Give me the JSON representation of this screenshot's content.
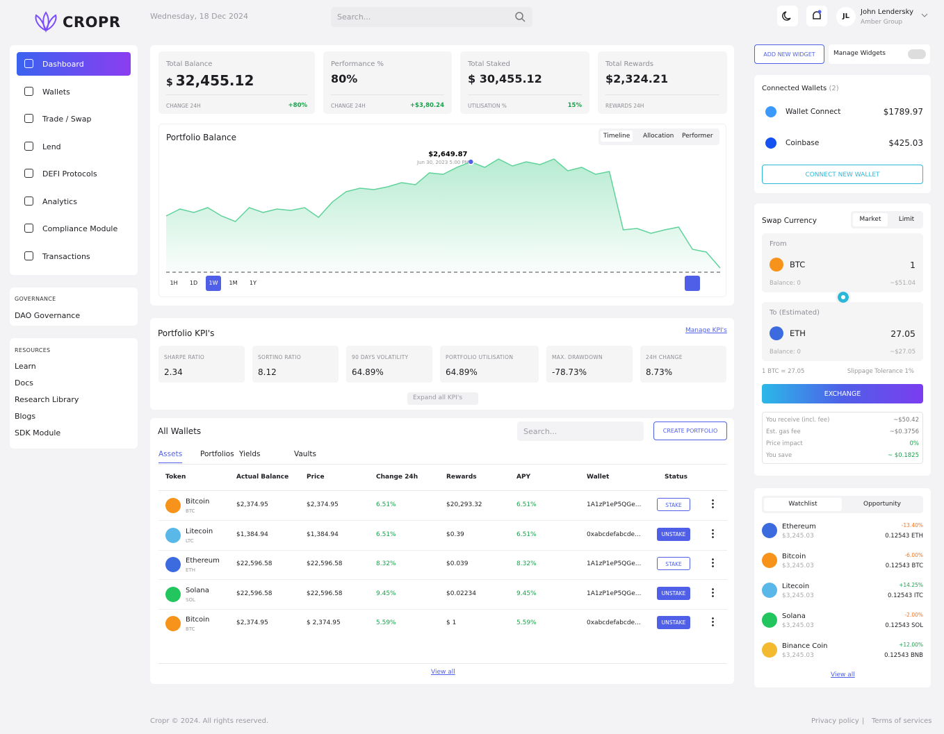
{
  "header": {
    "brand": "CROPR",
    "date": "Wednesday, 18 Dec 2024",
    "search": "Search...",
    "user": {
      "initials": "JL",
      "name": "John Lendersky",
      "org": "Amber Group"
    }
  },
  "sidebar": {
    "nav": [
      "Dashboard",
      "Wallets",
      "Trade / Swap",
      "Lend",
      "DEFI Protocols",
      "Analytics",
      "Compliance Module",
      "Transactions"
    ],
    "governance": {
      "title": "GOVERNANCE",
      "links": [
        "DAO Governance"
      ]
    },
    "resources": {
      "title": "RESOURCES",
      "links": [
        "Learn",
        "Docs",
        "Research Library",
        "Blogs",
        "SDK Module"
      ]
    }
  },
  "stats": [
    {
      "label": "Total Balance",
      "currency": "$",
      "value": "32,455.12",
      "footer_label": "CHANGE 24H",
      "footer_value": "+80%"
    },
    {
      "label": "Performance %",
      "value": "80%",
      "footer_label": "CHANGE 24H",
      "footer_value": "+$3,80.24"
    },
    {
      "label": "Total Staked",
      "value": "$ 30,455.12",
      "footer_label": "UTILISATION %",
      "footer_value": "15%"
    },
    {
      "label": "Total Rewards",
      "value": "$2,324.21",
      "footer_label": "REWARDS 24H"
    }
  ],
  "chart_data": {
    "type": "area",
    "title": "Portfolio Balance",
    "tabs": [
      "Timeline",
      "Allocation",
      "Performer"
    ],
    "ranges": [
      "1H",
      "1D",
      "1W",
      "1M",
      "1Y"
    ],
    "color": "#5fd39a",
    "values": [
      1350,
      1517,
      1434,
      1550,
      1350,
      1217,
      1550,
      1434,
      1517,
      1484,
      1550,
      1317,
      1684,
      1934,
      2017,
      1984,
      2050,
      2150,
      2100,
      2384,
      2350,
      2517,
      2649.87,
      2517,
      2717,
      2550,
      2650,
      2584,
      2717,
      2434,
      2517,
      2350,
      2417,
      1017,
      1050,
      934,
      1017,
      1084,
      550,
      484,
      100
    ],
    "ylim": [
      0,
      3000
    ],
    "annotation": {
      "index": 22,
      "label": "$2,649.87",
      "date": "Jun 30, 2023 5:00 PM"
    }
  },
  "kpis": {
    "title": "Portfolio KPI's",
    "link": "Manage KPI's",
    "expand": "Expand all KPI's",
    "items": [
      {
        "label": "SHARPE RATIO",
        "value": "2.34"
      },
      {
        "label": "SORTINO RATIO",
        "value": "8.12"
      },
      {
        "label": "90 DAYS VOLATILITY",
        "value": "64.89%"
      },
      {
        "label": "PORTFOLIO UTILISATION",
        "value": "64.89%"
      },
      {
        "label": "MAX. DRAWDOWN",
        "value": "-78.73%"
      },
      {
        "label": "24H CHANGE",
        "value": "8.73%"
      }
    ]
  },
  "wallets": {
    "title": "All Wallets",
    "search": "Search...",
    "create": "CREATE PORTFOLIO",
    "tabs": [
      "Assets",
      "Portfolios",
      "Yields",
      "Vaults"
    ],
    "columns": [
      "Token",
      "Actual Balance",
      "Price",
      "Change 24h",
      "Rewards",
      "APY",
      "Wallet",
      "Status"
    ],
    "rows": [
      {
        "name": "Bitcoin",
        "symbol": "BTC",
        "color": "#f7931a",
        "balance": "$2,374.95",
        "price": "$2,374.95",
        "change": "6.51%",
        "rewards": "$20,293.32",
        "apy": "6.51%",
        "wallet": "1A1zP1eP5QGe...",
        "action": "STAKE"
      },
      {
        "name": "Litecoin",
        "symbol": "LTC",
        "color": "#5ab8e8",
        "balance": "$1,384.94",
        "price": "$1,384.94",
        "change": "6.51%",
        "rewards": "$0.39",
        "apy": "6.51%",
        "wallet": "0xabcdefabcde...",
        "action": "UNSTAKE"
      },
      {
        "name": "Ethereum",
        "symbol": "ETH",
        "color": "#3c6be0",
        "balance": "$22,596.58",
        "price": "$22,596.58",
        "change": "8.32%",
        "rewards": "$0.039",
        "apy": "8.32%",
        "wallet": "1A1zP1eP5QGe...",
        "action": "STAKE"
      },
      {
        "name": "Solana",
        "symbol": "SOL",
        "color": "#22c55e",
        "balance": "$22,596.58",
        "price": "$22,596.58",
        "change": "9.45%",
        "rewards": "$0.02234",
        "apy": "9.45%",
        "wallet": "1A1zP1eP5QGe...",
        "action": "UNSTAKE"
      },
      {
        "name": "Bitcoin",
        "symbol": "BTC",
        "color": "#f7931a",
        "balance": "$2,374.95",
        "price": "$ 2,374.95",
        "change": "5.59%",
        "rewards": "$ 1",
        "apy": "5.59%",
        "wallet": "0xabcdefabcde...",
        "action": "UNSTAKE"
      }
    ],
    "view_all": "View all"
  },
  "widgets": {
    "add": "ADD NEW WIDGET",
    "manage": "Manage Widgets"
  },
  "connected": {
    "title": "Connected Wallets",
    "count": "(2)",
    "wallets": [
      {
        "name": "Wallet Connect",
        "balance": "$1789.97",
        "color": "#3b99fc"
      },
      {
        "name": "Coinbase",
        "balance": "$425.03",
        "color": "#1652f0"
      }
    ],
    "connect": "CONNECT NEW WALLET"
  },
  "swap": {
    "title": "Swap Currency",
    "tabs": [
      "Market",
      "Limit"
    ],
    "from": {
      "label": "From",
      "token": "BTC",
      "color": "#f7931a",
      "amount": "1",
      "balance": "Balance: 0",
      "usd": "~$51.04"
    },
    "to": {
      "label": "To (Estimated)",
      "token": "ETH",
      "color": "#3c6be0",
      "amount": "27.05",
      "balance": "Balance: 0",
      "usd": "~$27.05"
    },
    "rate": "1 BTC = 27.05",
    "slippage": "Slippage Tolerance 1%",
    "exchange": "EXCHANGE",
    "details": [
      {
        "label": "You receive (incl. fee)",
        "value": "~$50.42"
      },
      {
        "label": "Est. gas fee",
        "value": "~$0.3756"
      },
      {
        "label": "Price impact",
        "value": "0%"
      },
      {
        "label": "You save",
        "value": "~ $0.1825"
      }
    ]
  },
  "watchlist": {
    "tabs": [
      "Watchlist",
      "Opportunity"
    ],
    "items": [
      {
        "name": "Ethereum",
        "price": "$3,245.03",
        "change": "-13.40%",
        "amount": "0.12543 ETH",
        "color": "#3c6be0"
      },
      {
        "name": "Bitcoin",
        "price": "$3,245.03",
        "change": "-6.00%",
        "amount": "0.12543 BTC",
        "color": "#f7931a"
      },
      {
        "name": "Litecoin",
        "price": "$3,245.03",
        "change": "+14.25%",
        "amount": "0.12543 ITC",
        "color": "#5ab8e8"
      },
      {
        "name": "Solana",
        "price": "$3,245.03",
        "change": "-2.00%",
        "amount": "0.12543 SOL",
        "color": "#22c55e"
      },
      {
        "name": "Binance Coin",
        "price": "$3,245.03",
        "change": "+12.00%",
        "amount": "0.12543 BNB",
        "color": "#f3ba2f"
      }
    ],
    "view_all": "View all"
  },
  "footer": {
    "copyright": "Cropr © 2024. All rights reserved.",
    "links": [
      "Privacy policy",
      "Terms of services"
    ]
  }
}
